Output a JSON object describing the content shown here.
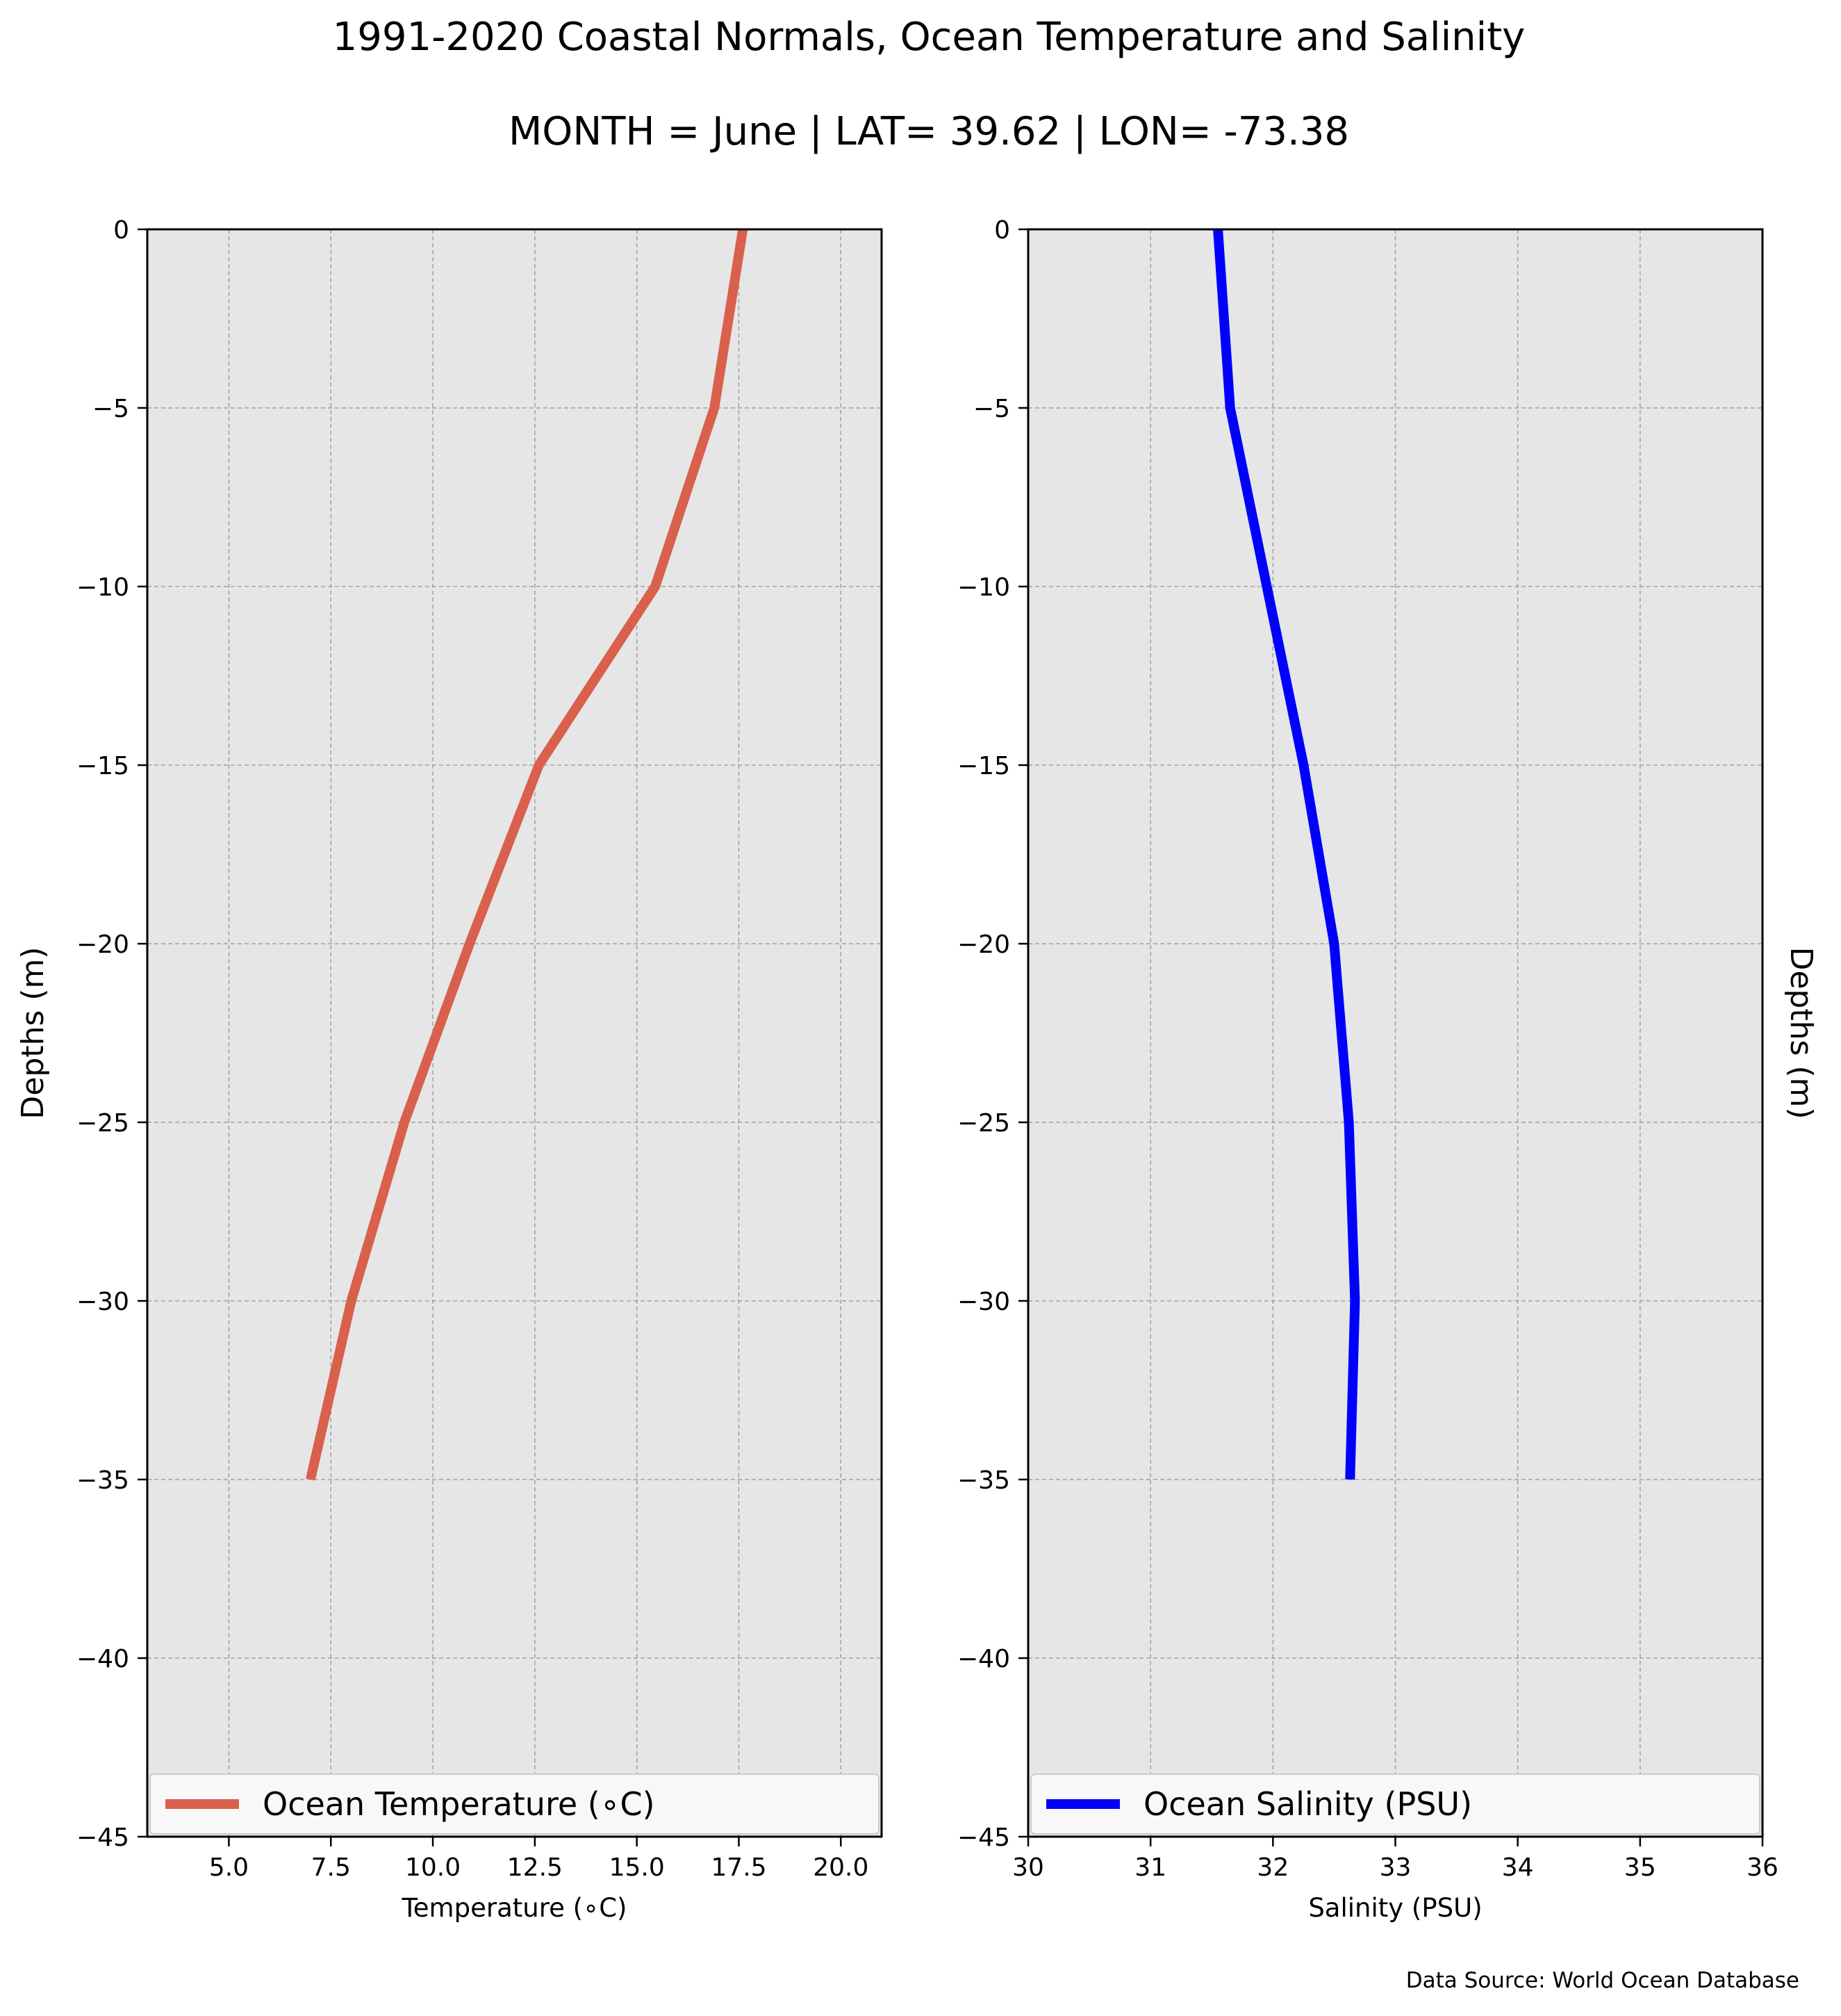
{
  "figure": {
    "title": "1991-2020 Coastal Normals, Ocean Temperature and Salinity",
    "subtitle": "MONTH = June | LAT= 39.62 | LON= -73.38",
    "source_note": "Data Source: World Ocean Database",
    "background": "#ffffff",
    "plot_background": "#e6e6e6",
    "grid_color": "#a0a0a0"
  },
  "chart_data": [
    {
      "type": "line",
      "xlabel": "Temperature ($^∘$C)",
      "xlabel_display": "Temperature (∘C)",
      "ylabel": "Depths (m)",
      "ylabel_side": "left",
      "xlim": [
        3.0,
        21.0
      ],
      "ylim": [
        -45,
        0
      ],
      "xticks": [
        5.0,
        7.5,
        10.0,
        12.5,
        15.0,
        17.5,
        20.0
      ],
      "xtick_labels": [
        "5.0",
        "7.5",
        "10.0",
        "12.5",
        "15.0",
        "17.5",
        "20.0"
      ],
      "yticks": [
        0,
        -5,
        -10,
        -15,
        -20,
        -25,
        -30,
        -35,
        -40,
        -45
      ],
      "ytick_labels": [
        "0",
        "−5",
        "−10",
        "−15",
        "−20",
        "−25",
        "−30",
        "−35",
        "−40",
        "−45"
      ],
      "grid": true,
      "legend_position": "bottom",
      "series": [
        {
          "name": "Ocean Temperature (∘C)",
          "color": "#d9604d",
          "x": [
            17.6,
            16.9,
            15.45,
            12.6,
            10.9,
            9.3,
            8.0,
            7.0
          ],
          "y": [
            0,
            -5,
            -10,
            -15,
            -20,
            -25,
            -30,
            -35
          ]
        }
      ]
    },
    {
      "type": "line",
      "xlabel": "Salinity (PSU)",
      "ylabel": "Depths (m)",
      "ylabel_side": "right",
      "xlim": [
        30,
        36
      ],
      "ylim": [
        -45,
        0
      ],
      "xticks": [
        30,
        31,
        32,
        33,
        34,
        35,
        36
      ],
      "xtick_labels": [
        "30",
        "31",
        "32",
        "33",
        "34",
        "35",
        "36"
      ],
      "yticks": [
        0,
        -5,
        -10,
        -15,
        -20,
        -25,
        -30,
        -35,
        -40,
        -45
      ],
      "ytick_labels": [
        "0",
        "−5",
        "−10",
        "−15",
        "−20",
        "−25",
        "−30",
        "−35",
        "−40",
        "−45"
      ],
      "grid": true,
      "legend_position": "bottom",
      "series": [
        {
          "name": "Ocean Salinity (PSU)",
          "color": "#0000ff",
          "x": [
            31.55,
            31.65,
            31.95,
            32.25,
            32.5,
            32.62,
            32.67,
            32.63
          ],
          "y": [
            0,
            -5,
            -10,
            -15,
            -20,
            -25,
            -30,
            -35
          ]
        }
      ]
    }
  ]
}
